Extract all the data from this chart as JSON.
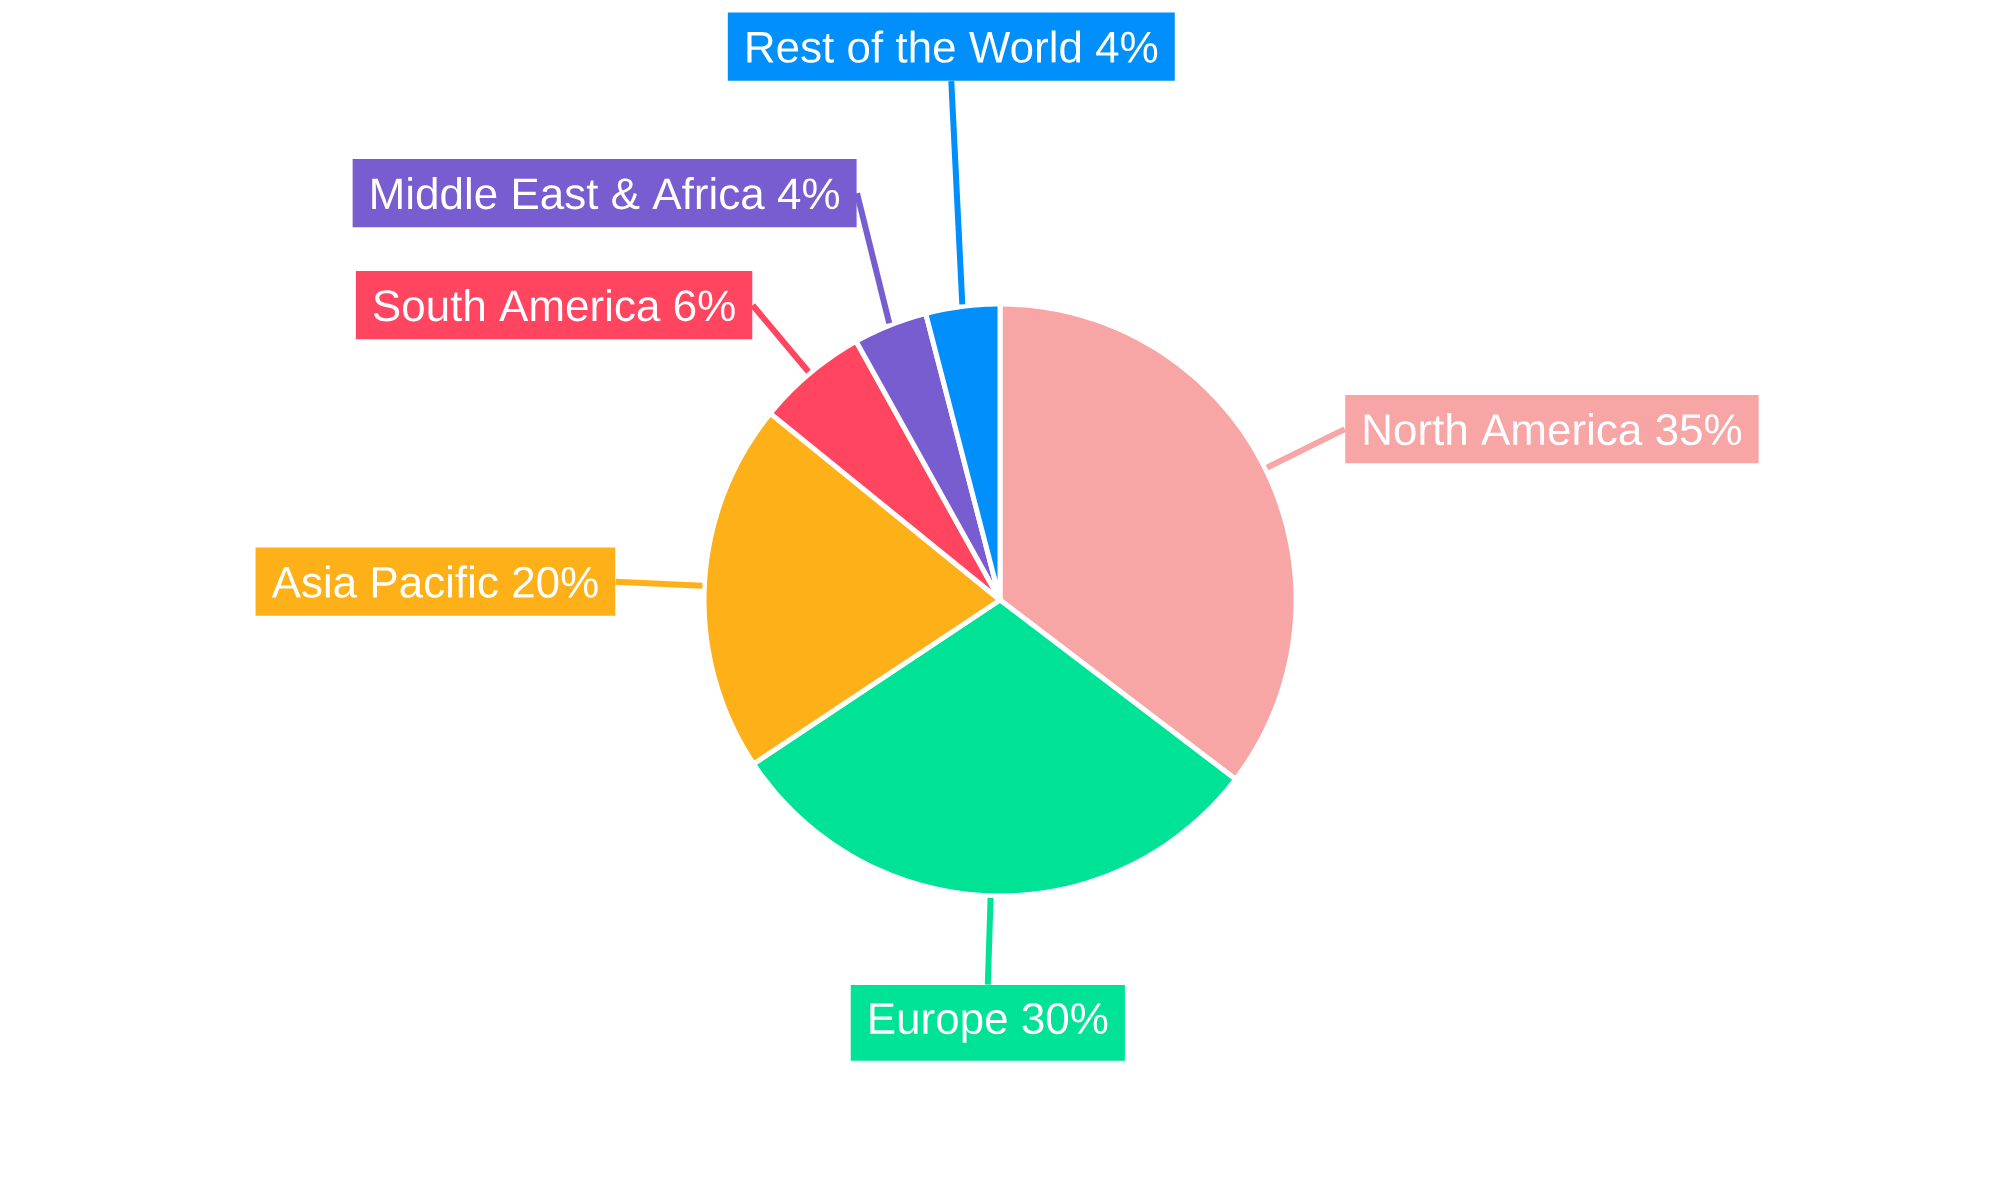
{
  "chart_data": {
    "type": "pie",
    "categories": [
      "North America",
      "Europe",
      "Asia Pacific",
      "South America",
      "Middle East & Africa",
      "Rest of the World"
    ],
    "values": [
      35,
      30,
      20,
      6,
      4,
      4
    ],
    "colors": [
      "#f8a5a6",
      "#00e396",
      "#feb019",
      "#ff4560",
      "#775dd0",
      "#008ffb"
    ],
    "value_labels": [
      "35%",
      "30%",
      "20%",
      "6%",
      "4%",
      "4%"
    ]
  }
}
